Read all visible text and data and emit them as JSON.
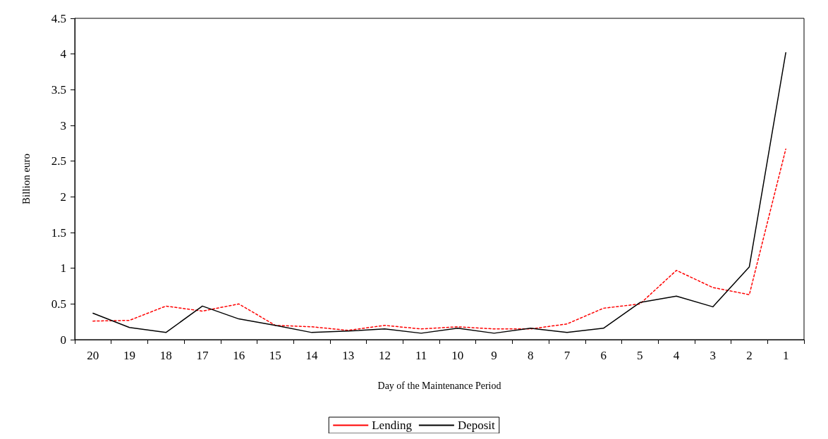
{
  "chart_data": {
    "type": "line",
    "xlabel": "Day of the Maintenance Period",
    "ylabel": "Billion euro",
    "categories": [
      "20",
      "19",
      "18",
      "17",
      "16",
      "15",
      "14",
      "13",
      "12",
      "11",
      "10",
      "9",
      "8",
      "7",
      "6",
      "5",
      "4",
      "3",
      "2",
      "1"
    ],
    "series": [
      {
        "name": "Lending",
        "color": "#ff0000",
        "line_style": "dotted",
        "values": [
          0.26,
          0.27,
          0.47,
          0.4,
          0.5,
          0.2,
          0.18,
          0.13,
          0.2,
          0.15,
          0.18,
          0.15,
          0.15,
          0.22,
          0.44,
          0.5,
          0.97,
          0.73,
          0.63,
          2.67
        ]
      },
      {
        "name": "Deposit",
        "color": "#000000",
        "line_style": "solid",
        "values": [
          0.37,
          0.17,
          0.1,
          0.47,
          0.29,
          0.2,
          0.1,
          0.12,
          0.15,
          0.09,
          0.16,
          0.09,
          0.16,
          0.1,
          0.16,
          0.52,
          0.61,
          0.46,
          1.02,
          4.02
        ]
      }
    ],
    "ylim": [
      0,
      4.5
    ],
    "yticks": [
      0,
      0.5,
      1,
      1.5,
      2,
      2.5,
      3,
      3.5,
      4,
      4.5
    ],
    "grid": false,
    "legend": "bottom",
    "marker": "none"
  }
}
